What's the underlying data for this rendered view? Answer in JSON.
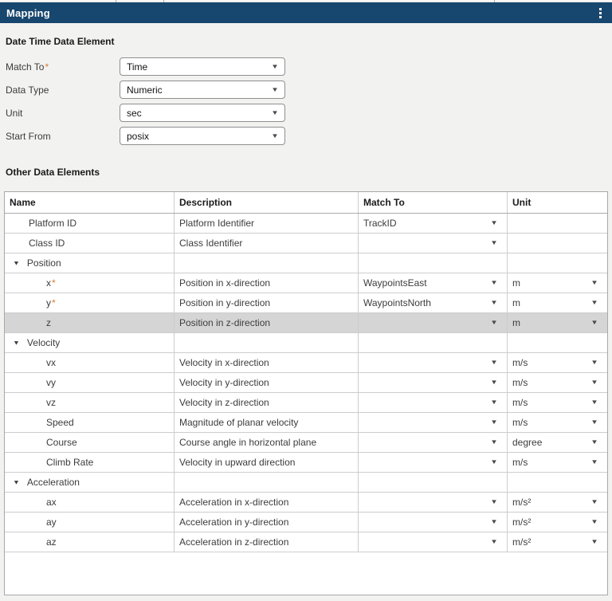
{
  "header": {
    "title": "Mapping",
    "menu_icon": "vertical-ellipsis"
  },
  "glyphs": {
    "dropdown_arrow": "▼",
    "group_expanded": "▼"
  },
  "colors": {
    "header_bg": "#17466E",
    "page_bg": "#F2F2F1",
    "required_accent": "#DB7B2B",
    "selected_row_bg": "#D5D5D5",
    "table_border": "#A8A8A8",
    "grid_line": "#CDCDCD"
  },
  "datetime_section": {
    "title": "Date Time Data Element",
    "fields": [
      {
        "label": "Match To",
        "required": true,
        "value": "Time"
      },
      {
        "label": "Data Type",
        "required": false,
        "value": "Numeric"
      },
      {
        "label": "Unit",
        "required": false,
        "value": "sec"
      },
      {
        "label": "Start From",
        "required": false,
        "value": "posix"
      }
    ]
  },
  "other_section": {
    "title": "Other Data Elements",
    "columns": [
      "Name",
      "Description",
      "Match To",
      "Unit"
    ],
    "rows": [
      {
        "name": "Platform ID",
        "group": false,
        "indent": 1,
        "required": false,
        "selected": false,
        "description": "Platform Identifier",
        "match_to": "TrackID",
        "match_dropdown": true,
        "unit": "",
        "unit_dropdown": false
      },
      {
        "name": "Class ID",
        "group": false,
        "indent": 1,
        "required": false,
        "selected": false,
        "description": "Class Identifier",
        "match_to": "",
        "match_dropdown": true,
        "unit": "",
        "unit_dropdown": false
      },
      {
        "name": "Position",
        "group": true,
        "expanded": true,
        "description": "",
        "match_to": "",
        "match_dropdown": false,
        "unit": "",
        "unit_dropdown": false
      },
      {
        "name": "x",
        "group": false,
        "indent": 2,
        "required": true,
        "selected": false,
        "description": "Position in x-direction",
        "match_to": "WaypointsEast",
        "match_dropdown": true,
        "unit": "m",
        "unit_dropdown": true
      },
      {
        "name": "y",
        "group": false,
        "indent": 2,
        "required": true,
        "selected": false,
        "description": "Position in y-direction",
        "match_to": "WaypointsNorth",
        "match_dropdown": true,
        "unit": "m",
        "unit_dropdown": true
      },
      {
        "name": "z",
        "group": false,
        "indent": 2,
        "required": false,
        "selected": true,
        "description": "Position in z-direction",
        "match_to": "",
        "match_dropdown": true,
        "unit": "m",
        "unit_dropdown": true
      },
      {
        "name": "Velocity",
        "group": true,
        "expanded": true,
        "description": "",
        "match_to": "",
        "match_dropdown": false,
        "unit": "",
        "unit_dropdown": false
      },
      {
        "name": "vx",
        "group": false,
        "indent": 2,
        "required": false,
        "selected": false,
        "description": "Velocity in x-direction",
        "match_to": "",
        "match_dropdown": true,
        "unit": "m/s",
        "unit_dropdown": true
      },
      {
        "name": "vy",
        "group": false,
        "indent": 2,
        "required": false,
        "selected": false,
        "description": "Velocity in y-direction",
        "match_to": "",
        "match_dropdown": true,
        "unit": "m/s",
        "unit_dropdown": true
      },
      {
        "name": "vz",
        "group": false,
        "indent": 2,
        "required": false,
        "selected": false,
        "description": "Velocity in z-direction",
        "match_to": "",
        "match_dropdown": true,
        "unit": "m/s",
        "unit_dropdown": true
      },
      {
        "name": "Speed",
        "group": false,
        "indent": 2,
        "required": false,
        "selected": false,
        "description": "Magnitude of planar velocity",
        "match_to": "",
        "match_dropdown": true,
        "unit": "m/s",
        "unit_dropdown": true
      },
      {
        "name": "Course",
        "group": false,
        "indent": 2,
        "required": false,
        "selected": false,
        "description": "Course angle in horizontal plane",
        "match_to": "",
        "match_dropdown": true,
        "unit": "degree",
        "unit_dropdown": true
      },
      {
        "name": "Climb Rate",
        "group": false,
        "indent": 2,
        "required": false,
        "selected": false,
        "description": "Velocity in upward direction",
        "match_to": "",
        "match_dropdown": true,
        "unit": "m/s",
        "unit_dropdown": true
      },
      {
        "name": "Acceleration",
        "group": true,
        "expanded": true,
        "description": "",
        "match_to": "",
        "match_dropdown": false,
        "unit": "",
        "unit_dropdown": false
      },
      {
        "name": "ax",
        "group": false,
        "indent": 2,
        "required": false,
        "selected": false,
        "description": "Acceleration in x-direction",
        "match_to": "",
        "match_dropdown": true,
        "unit": "m/s²",
        "unit_dropdown": true
      },
      {
        "name": "ay",
        "group": false,
        "indent": 2,
        "required": false,
        "selected": false,
        "description": "Acceleration in y-direction",
        "match_to": "",
        "match_dropdown": true,
        "unit": "m/s²",
        "unit_dropdown": true
      },
      {
        "name": "az",
        "group": false,
        "indent": 2,
        "required": false,
        "selected": false,
        "description": "Acceleration in z-direction",
        "match_to": "",
        "match_dropdown": true,
        "unit": "m/s²",
        "unit_dropdown": true
      }
    ]
  }
}
